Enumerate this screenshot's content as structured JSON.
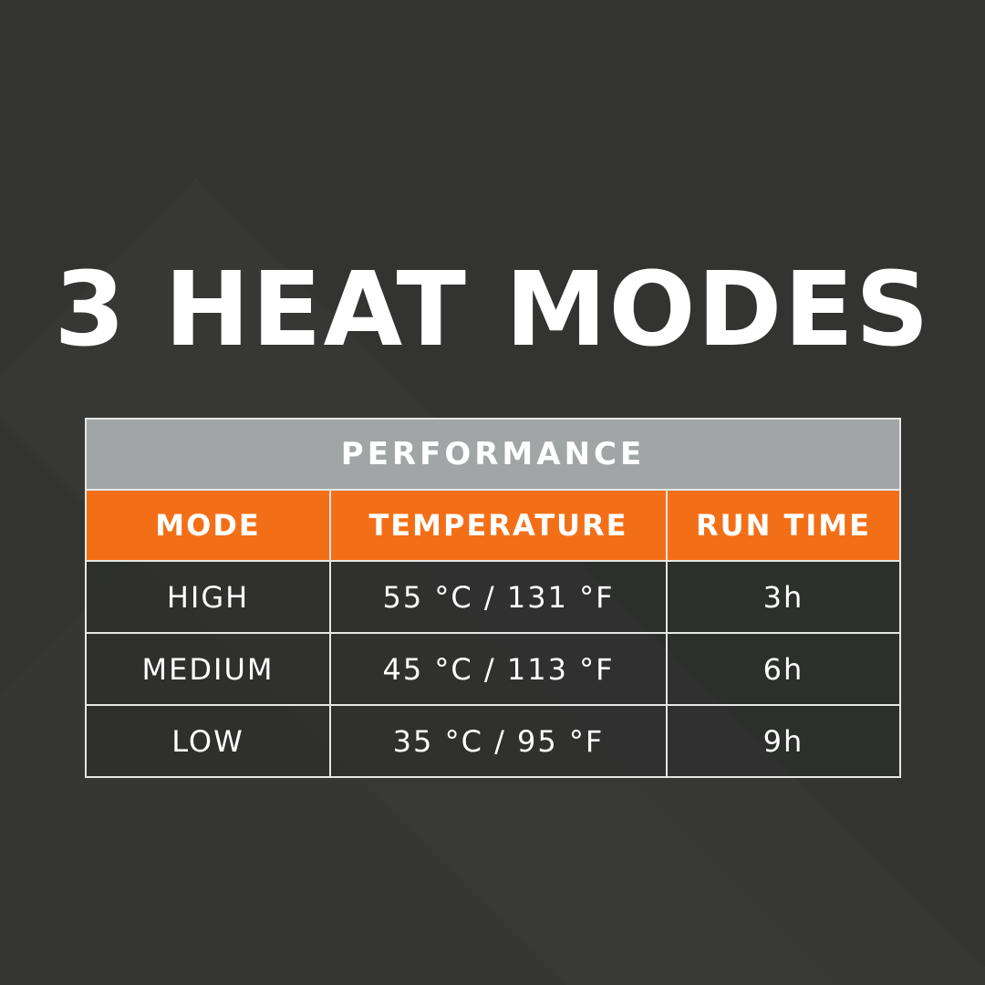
{
  "title": "3 HEAT MODES",
  "table": {
    "caption": "PERFORMANCE",
    "headers": [
      "MODE",
      "TEMPERATURE",
      "RUN TIME"
    ],
    "rows": [
      [
        "HIGH",
        "55 °C / 131 °F",
        "3h"
      ],
      [
        "MEDIUM",
        "45 °C / 113 °F",
        "6h"
      ],
      [
        "LOW",
        "35 °C / 95 °F",
        "9h"
      ]
    ]
  },
  "colors": {
    "background": "#333432",
    "accent": "#f36f17",
    "caption_bg": "#a2a5a5"
  }
}
